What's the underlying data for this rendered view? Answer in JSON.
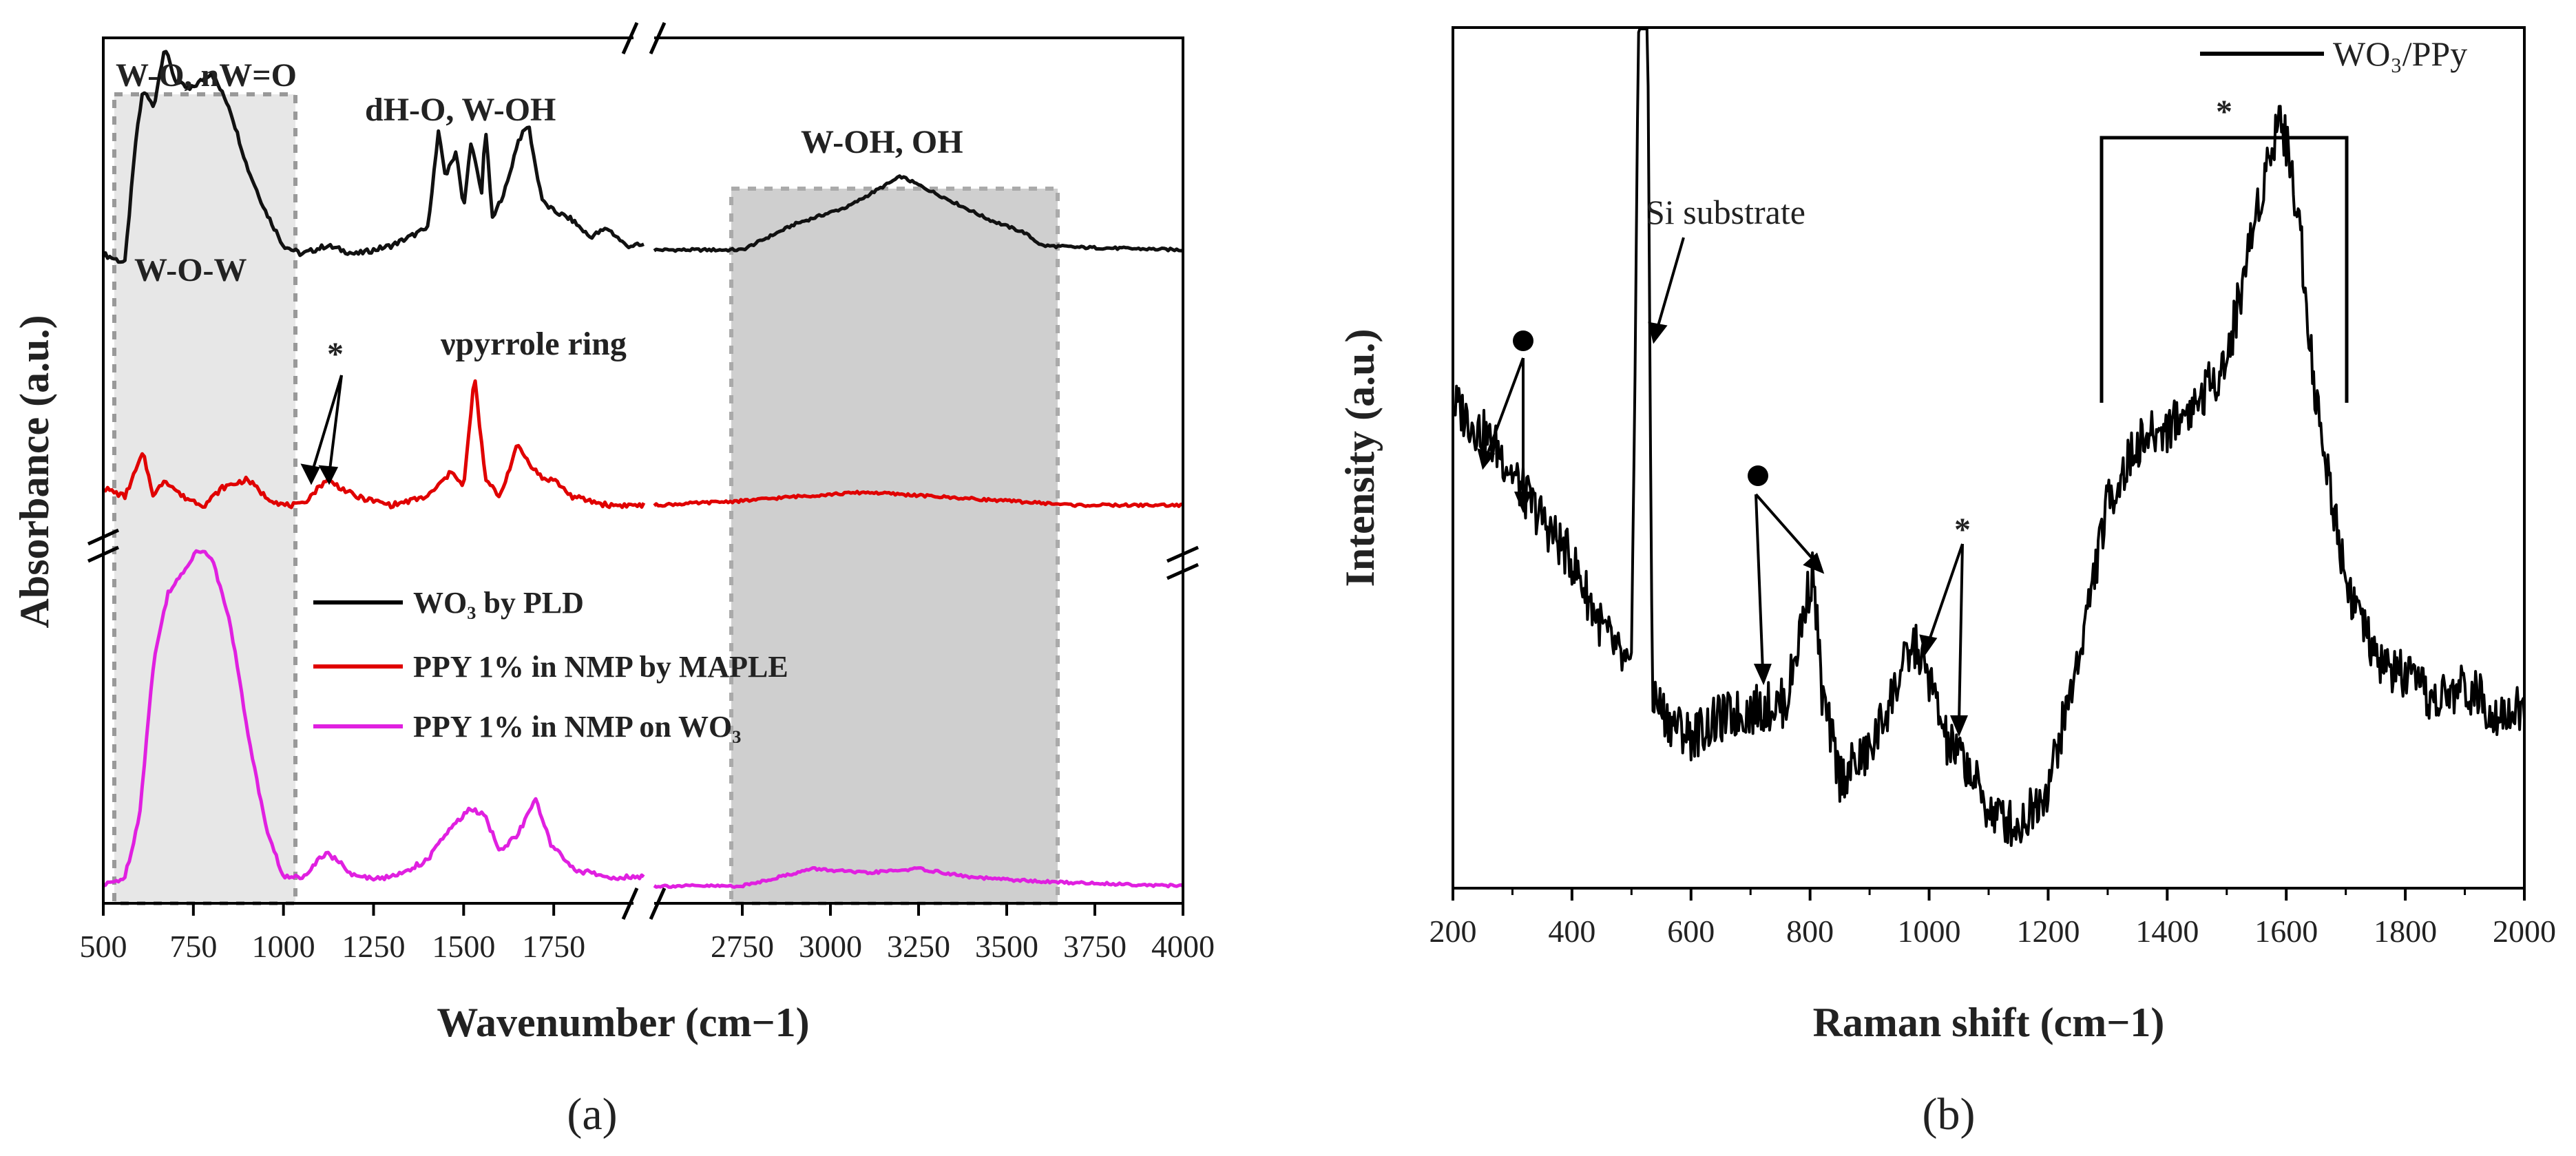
{
  "chart_data": [
    {
      "panel": "a",
      "type": "line",
      "panel_label": "(a)",
      "xlabel": "Wavenumber (cm−1)",
      "ylabel": "Absorbance (a.u.)",
      "x_segments": [
        [
          500,
          2000
        ],
        [
          2500,
          4000
        ]
      ],
      "xticks_left": [
        "500",
        "750",
        "1000",
        "1250",
        "1500",
        "1750"
      ],
      "xticks_right": [
        "2750",
        "3000",
        "3250",
        "3500",
        "3750",
        "4000"
      ],
      "shaded_regions": [
        {
          "from": 530,
          "to": 1030,
          "shade": "light"
        },
        {
          "from": 2760,
          "to": 3650,
          "shade": "medium"
        }
      ],
      "annotations": {
        "w_o_nw_o": "W-O, nW=O",
        "w_o_w": "W-O-W",
        "dh_o_w_oh": "dH-O, W-OH",
        "w_oh_oh": "W-OH, OH",
        "v_pyrrole": "νpyrrole ring",
        "star": "*"
      },
      "legend": [
        {
          "label": "WO₃ by PLD",
          "color": "#000000"
        },
        {
          "label": "PPY 1% in NMP by MAPLE",
          "color": "#e00000"
        },
        {
          "label": "PPY 1% in NMP on WO₃",
          "color": "#e020e0"
        }
      ],
      "series": [
        {
          "name": "WO₃ by PLD",
          "color": "#111111",
          "baseline": 0.76,
          "points_left": [
            [
              500,
              0.75
            ],
            [
              560,
              0.74
            ],
            [
              590,
              0.88
            ],
            [
              610,
              0.94
            ],
            [
              640,
              0.92
            ],
            [
              670,
              0.99
            ],
            [
              700,
              0.95
            ],
            [
              740,
              0.94
            ],
            [
              800,
              0.96
            ],
            [
              850,
              0.92
            ],
            [
              900,
              0.85
            ],
            [
              950,
              0.8
            ],
            [
              1000,
              0.76
            ],
            [
              1050,
              0.75
            ],
            [
              1120,
              0.76
            ],
            [
              1200,
              0.75
            ],
            [
              1300,
              0.76
            ],
            [
              1400,
              0.78
            ],
            [
              1430,
              0.89
            ],
            [
              1450,
              0.84
            ],
            [
              1480,
              0.87
            ],
            [
              1500,
              0.8
            ],
            [
              1520,
              0.88
            ],
            [
              1550,
              0.82
            ],
            [
              1560,
              0.9
            ],
            [
              1580,
              0.79
            ],
            [
              1620,
              0.83
            ],
            [
              1650,
              0.88
            ],
            [
              1680,
              0.9
            ],
            [
              1700,
              0.85
            ],
            [
              1720,
              0.81
            ],
            [
              1750,
              0.8
            ],
            [
              1800,
              0.79
            ],
            [
              1850,
              0.77
            ],
            [
              1900,
              0.78
            ],
            [
              1950,
              0.76
            ],
            [
              2000,
              0.76
            ]
          ],
          "points_right": [
            [
              2500,
              0.755
            ],
            [
              2750,
              0.755
            ],
            [
              2900,
              0.785
            ],
            [
              3050,
              0.805
            ],
            [
              3200,
              0.84
            ],
            [
              3300,
              0.82
            ],
            [
              3450,
              0.79
            ],
            [
              3550,
              0.775
            ],
            [
              3600,
              0.76
            ],
            [
              3700,
              0.758
            ],
            [
              4000,
              0.755
            ]
          ]
        },
        {
          "name": "PPY 1% in NMP by MAPLE",
          "color": "#e00000",
          "baseline": 0.47,
          "points_left": [
            [
              500,
              0.48
            ],
            [
              560,
              0.47
            ],
            [
              610,
              0.52
            ],
            [
              640,
              0.47
            ],
            [
              670,
              0.49
            ],
            [
              720,
              0.47
            ],
            [
              780,
              0.46
            ],
            [
              830,
              0.48
            ],
            [
              900,
              0.49
            ],
            [
              950,
              0.47
            ],
            [
              1000,
              0.46
            ],
            [
              1050,
              0.46
            ],
            [
              1120,
              0.49
            ],
            [
              1200,
              0.47
            ],
            [
              1300,
              0.46
            ],
            [
              1400,
              0.47
            ],
            [
              1470,
              0.5
            ],
            [
              1500,
              0.48
            ],
            [
              1530,
              0.61
            ],
            [
              1560,
              0.49
            ],
            [
              1600,
              0.47
            ],
            [
              1650,
              0.53
            ],
            [
              1680,
              0.51
            ],
            [
              1720,
              0.49
            ],
            [
              1750,
              0.49
            ],
            [
              1800,
              0.47
            ],
            [
              1900,
              0.46
            ],
            [
              2000,
              0.46
            ]
          ],
          "points_right": [
            [
              2500,
              0.46
            ],
            [
              2750,
              0.465
            ],
            [
              2900,
              0.47
            ],
            [
              3100,
              0.475
            ],
            [
              3300,
              0.47
            ],
            [
              3500,
              0.465
            ],
            [
              3700,
              0.46
            ],
            [
              4000,
              0.46
            ]
          ]
        },
        {
          "name": "PPY 1% in NMP on WO₃",
          "color": "#e020e0",
          "baseline": 0.02,
          "points_left": [
            [
              500,
              0.02
            ],
            [
              560,
              0.03
            ],
            [
              600,
              0.1
            ],
            [
              640,
              0.28
            ],
            [
              680,
              0.36
            ],
            [
              720,
              0.38
            ],
            [
              760,
              0.41
            ],
            [
              800,
              0.4
            ],
            [
              850,
              0.33
            ],
            [
              900,
              0.2
            ],
            [
              950,
              0.09
            ],
            [
              1000,
              0.03
            ],
            [
              1050,
              0.03
            ],
            [
              1120,
              0.06
            ],
            [
              1200,
              0.03
            ],
            [
              1300,
              0.03
            ],
            [
              1400,
              0.05
            ],
            [
              1450,
              0.08
            ],
            [
              1520,
              0.11
            ],
            [
              1560,
              0.1
            ],
            [
              1600,
              0.06
            ],
            [
              1650,
              0.08
            ],
            [
              1700,
              0.12
            ],
            [
              1740,
              0.07
            ],
            [
              1800,
              0.04
            ],
            [
              1900,
              0.03
            ],
            [
              2000,
              0.03
            ]
          ],
          "points_right": [
            [
              2500,
              0.02
            ],
            [
              2750,
              0.02
            ],
            [
              2850,
              0.03
            ],
            [
              2950,
              0.04
            ],
            [
              3100,
              0.035
            ],
            [
              3250,
              0.04
            ],
            [
              3400,
              0.03
            ],
            [
              3600,
              0.025
            ],
            [
              4000,
              0.02
            ]
          ]
        }
      ]
    },
    {
      "panel": "b",
      "type": "line",
      "panel_label": "(b)",
      "xlabel": "Raman shift (cm−1)",
      "ylabel": "Intensity (a.u.)",
      "xlim": [
        200,
        2000
      ],
      "xticks": [
        "200",
        "400",
        "600",
        "800",
        "1000",
        "1200",
        "1400",
        "1600",
        "1800",
        "2000"
      ],
      "legend": [
        {
          "label": "WO₃/PPy",
          "color": "#000000"
        }
      ],
      "annotations": {
        "si_substrate": "Si substrate",
        "star_1": "*",
        "star_2": "*"
      },
      "series": [
        {
          "name": "WO₃/PPy",
          "color": "#000000",
          "points": [
            [
              200,
              0.55
            ],
            [
              240,
              0.52
            ],
            [
              280,
              0.49
            ],
            [
              320,
              0.44
            ],
            [
              360,
              0.4
            ],
            [
              400,
              0.36
            ],
            [
              450,
              0.28
            ],
            [
              500,
              0.22
            ],
            [
              515,
              1.2
            ],
            [
              525,
              1.2
            ],
            [
              535,
              0.2
            ],
            [
              560,
              0.17
            ],
            [
              600,
              0.15
            ],
            [
              650,
              0.17
            ],
            [
              700,
              0.18
            ],
            [
              760,
              0.19
            ],
            [
              790,
              0.3
            ],
            [
              805,
              0.35
            ],
            [
              820,
              0.2
            ],
            [
              850,
              0.1
            ],
            [
              900,
              0.13
            ],
            [
              950,
              0.22
            ],
            [
              975,
              0.26
            ],
            [
              1000,
              0.22
            ],
            [
              1030,
              0.14
            ],
            [
              1060,
              0.12
            ],
            [
              1100,
              0.06
            ],
            [
              1150,
              0.04
            ],
            [
              1200,
              0.09
            ],
            [
              1250,
              0.24
            ],
            [
              1300,
              0.43
            ],
            [
              1350,
              0.5
            ],
            [
              1400,
              0.52
            ],
            [
              1450,
              0.55
            ],
            [
              1500,
              0.6
            ],
            [
              1550,
              0.78
            ],
            [
              1590,
              0.9
            ],
            [
              1620,
              0.78
            ],
            [
              1650,
              0.55
            ],
            [
              1700,
              0.34
            ],
            [
              1750,
              0.24
            ],
            [
              1800,
              0.22
            ],
            [
              1850,
              0.19
            ],
            [
              1900,
              0.21
            ],
            [
              1950,
              0.18
            ],
            [
              2000,
              0.18
            ]
          ]
        }
      ]
    }
  ]
}
